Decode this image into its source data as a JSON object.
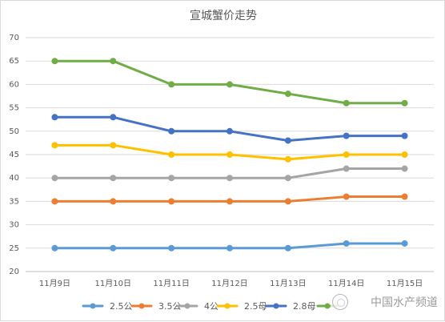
{
  "chart_data": {
    "type": "line",
    "title": "宣城蟹价走势",
    "categories": [
      "11月9日",
      "11月10日",
      "11月11日",
      "11月12日",
      "11月13日",
      "11月14日",
      "11月15日"
    ],
    "ylim": [
      20,
      70
    ],
    "y_ticks": [
      20,
      25,
      30,
      35,
      40,
      45,
      50,
      55,
      60,
      65,
      70
    ],
    "grid": true,
    "legend_position": "bottom",
    "series": [
      {
        "name": "2.5公",
        "color": "#5b9bd5",
        "values": [
          25,
          25,
          25,
          25,
          25,
          26,
          26
        ]
      },
      {
        "name": "3.5公",
        "color": "#ed7d31",
        "values": [
          35,
          35,
          35,
          35,
          35,
          36,
          36
        ]
      },
      {
        "name": "4公",
        "color": "#a5a5a5",
        "values": [
          40,
          40,
          40,
          40,
          40,
          42,
          42
        ]
      },
      {
        "name": "2.5母",
        "color": "#ffc000",
        "values": [
          47,
          47,
          45,
          45,
          44,
          45,
          45
        ]
      },
      {
        "name": "2.8母",
        "color": "#4472c4",
        "values": [
          53,
          53,
          50,
          50,
          48,
          49,
          49
        ]
      },
      {
        "name": "",
        "color": "#70ad47",
        "values": [
          65,
          65,
          60,
          60,
          58,
          56,
          56
        ]
      }
    ]
  },
  "watermark": {
    "text": "中国水产频道"
  }
}
